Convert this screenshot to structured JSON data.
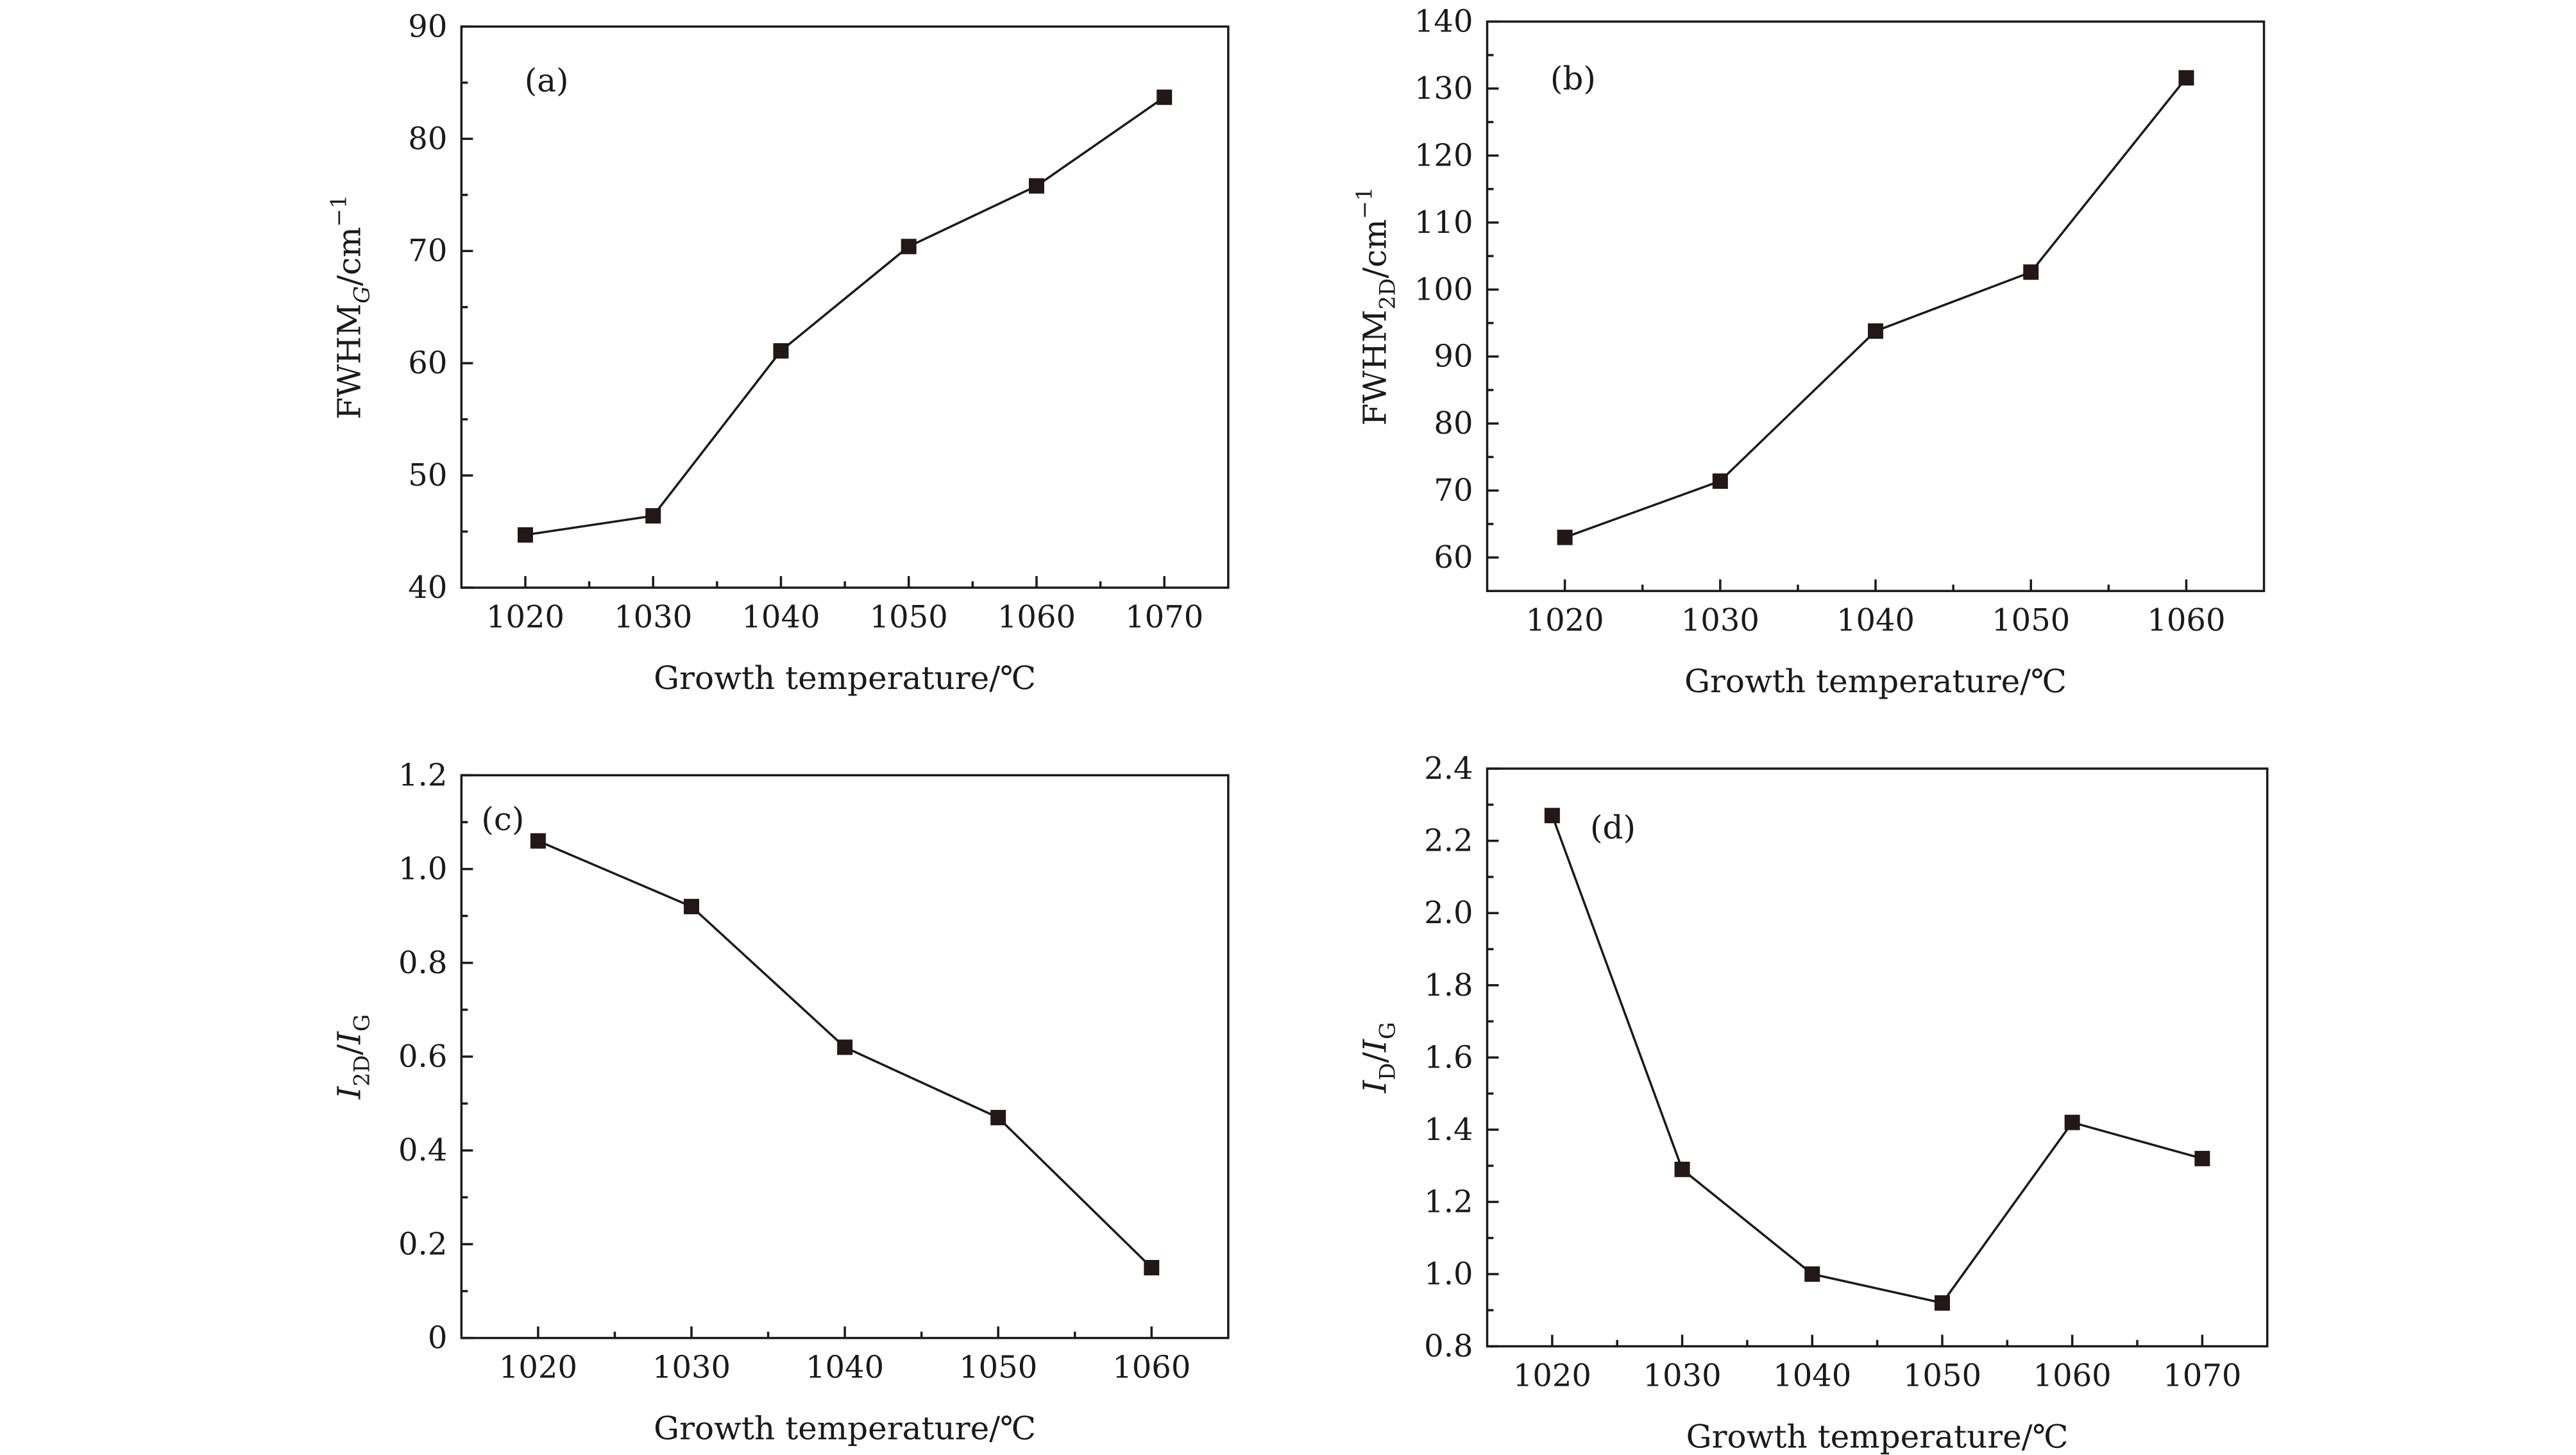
{
  "chart_data": [
    {
      "type": "line",
      "panel_label": "(a)",
      "x": [
        1020,
        1030,
        1040,
        1050,
        1060,
        1070
      ],
      "series": [
        {
          "values": [
            44.7,
            46.4,
            61.1,
            70.4,
            75.8,
            83.7
          ]
        }
      ],
      "xlabel": "Growth temperature/℃",
      "ylabel_parts": [
        {
          "t": "FWHM"
        },
        {
          "t": "G",
          "sub": true,
          "italic": true
        },
        {
          "t": "/cm"
        },
        {
          "t": "−1",
          "sup": true
        }
      ],
      "xlim": [
        1015,
        1075
      ],
      "ylim": [
        40,
        90
      ],
      "xticks": [
        1020,
        1030,
        1040,
        1050,
        1060,
        1070
      ],
      "yticks": [
        40,
        50,
        60,
        70,
        80,
        90
      ],
      "xticklabels": [
        "1020",
        "1030",
        "1040",
        "1050",
        "1060",
        "1070"
      ],
      "yticklabels": [
        "40",
        "50",
        "60",
        "70",
        "80",
        "90"
      ],
      "grid": false
    },
    {
      "type": "line",
      "panel_label": "(b)",
      "x": [
        1020,
        1030,
        1040,
        1050,
        1060
      ],
      "series": [
        {
          "values": [
            63,
            71.4,
            93.8,
            102.6,
            131.6
          ]
        }
      ],
      "xlabel": "Growth temperature/℃",
      "ylabel_parts": [
        {
          "t": "FWHM"
        },
        {
          "t": "2D",
          "sub": true
        },
        {
          "t": "/cm"
        },
        {
          "t": "−1",
          "sup": true
        }
      ],
      "xlim": [
        1015,
        1065
      ],
      "ylim": [
        55,
        140
      ],
      "xticks": [
        1020,
        1030,
        1040,
        1050,
        1060
      ],
      "yticks": [
        60,
        70,
        80,
        90,
        100,
        110,
        120,
        130,
        140
      ],
      "xticklabels": [
        "1020",
        "1030",
        "1040",
        "1050",
        "1060"
      ],
      "yticklabels": [
        "60",
        "70",
        "80",
        "90",
        "100",
        "110",
        "120",
        "130",
        "140"
      ],
      "grid": false
    },
    {
      "type": "line",
      "panel_label": "(c)",
      "x": [
        1020,
        1030,
        1040,
        1050,
        1060
      ],
      "series": [
        {
          "values": [
            1.06,
            0.92,
            0.62,
            0.47,
            0.15
          ]
        }
      ],
      "xlabel": "Growth temperature/℃",
      "ylabel_parts": [
        {
          "t": "I",
          "italic": true
        },
        {
          "t": "2D",
          "sub": true
        },
        {
          "t": "/"
        },
        {
          "t": "I",
          "italic": true
        },
        {
          "t": "G",
          "sub": true
        }
      ],
      "xlim": [
        1015,
        1065
      ],
      "ylim": [
        0,
        1.2
      ],
      "xticks": [
        1020,
        1030,
        1040,
        1050,
        1060
      ],
      "yticks": [
        0,
        0.2,
        0.4,
        0.6,
        0.8,
        1.0,
        1.2
      ],
      "xticklabels": [
        "1020",
        "1030",
        "1040",
        "1050",
        "1060"
      ],
      "yticklabels": [
        "0",
        "0.2",
        "0.4",
        "0.6",
        "0.8",
        "1.0",
        "1.2"
      ],
      "grid": false
    },
    {
      "type": "line",
      "panel_label": "(d)",
      "x": [
        1020,
        1030,
        1040,
        1050,
        1060,
        1070
      ],
      "series": [
        {
          "values": [
            2.27,
            1.29,
            1.0,
            0.92,
            1.42,
            1.32
          ]
        }
      ],
      "xlabel": "Growth temperature/℃",
      "ylabel_parts": [
        {
          "t": "I",
          "italic": true
        },
        {
          "t": "D",
          "sub": true
        },
        {
          "t": "/"
        },
        {
          "t": "I",
          "italic": true
        },
        {
          "t": "G",
          "sub": true
        }
      ],
      "xlim": [
        1015,
        1075
      ],
      "ylim": [
        0.8,
        2.4
      ],
      "xticks": [
        1020,
        1030,
        1040,
        1050,
        1060,
        1070
      ],
      "yticks": [
        0.8,
        1.0,
        1.2,
        1.4,
        1.6,
        1.8,
        2.0,
        2.2,
        2.4
      ],
      "xticklabels": [
        "1020",
        "1030",
        "1040",
        "1050",
        "1060",
        "1070"
      ],
      "yticklabels": [
        "0.8",
        "1.0",
        "1.2",
        "1.4",
        "1.6",
        "1.8",
        "2.0",
        "2.2",
        "2.4"
      ],
      "grid": false
    }
  ]
}
